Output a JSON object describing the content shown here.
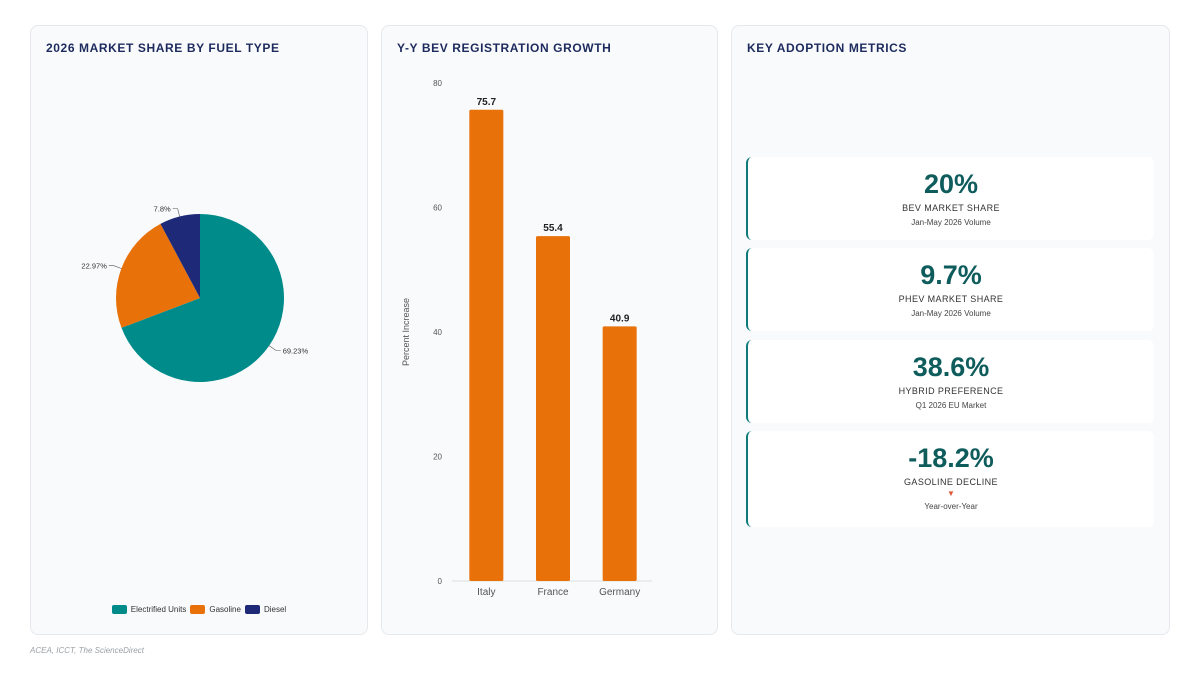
{
  "colors": {
    "electrified": "#008b8b",
    "gasoline": "#e8710a",
    "diesel": "#1e2a78",
    "bar": "#e8710a",
    "metric_value": "#0f5c5c",
    "decline_arrow": "#e05a3a"
  },
  "pie_panel": {
    "title": "2026 MARKET SHARE BY FUEL TYPE"
  },
  "bar_panel": {
    "title": "Y-Y BEV REGISTRATION GROWTH"
  },
  "metrics_panel": {
    "title": "KEY ADOPTION METRICS",
    "cards": [
      {
        "value": "20%",
        "label": "BEV MARKET SHARE",
        "sub": "Jan-May 2026 Volume"
      },
      {
        "value": "9.7%",
        "label": "PHEV MARKET SHARE",
        "sub": "Jan-May 2026 Volume"
      },
      {
        "value": "38.6%",
        "label": "HYBRID PREFERENCE",
        "sub": "Q1 2026 EU Market"
      },
      {
        "value": "-18.2%",
        "label": "GASOLINE DECLINE",
        "arrow": "▼",
        "sub": "Year-over-Year"
      }
    ]
  },
  "source": "ACEA, ICCT, The ScienceDirect",
  "chart_data": [
    {
      "type": "pie",
      "title": "2026 MARKET SHARE BY FUEL TYPE",
      "categories": [
        "Electrified Units",
        "Gasoline",
        "Diesel"
      ],
      "values": [
        69.23,
        22.97,
        7.8
      ],
      "value_labels": [
        "69.23%",
        "22.97%",
        "7.8%"
      ],
      "legend": "bottom"
    },
    {
      "type": "bar",
      "title": "Y-Y BEV REGISTRATION GROWTH",
      "categories": [
        "Italy",
        "France",
        "Germany"
      ],
      "values": [
        75.7,
        55.4,
        40.9
      ],
      "value_labels": [
        "75.7",
        "55.4",
        "40.9"
      ],
      "xlabel": "",
      "ylabel": "Percent Increase",
      "ylim": [
        0,
        80
      ],
      "yticks": [
        "0",
        "20",
        "40",
        "60",
        "80"
      ],
      "grid": false
    }
  ]
}
